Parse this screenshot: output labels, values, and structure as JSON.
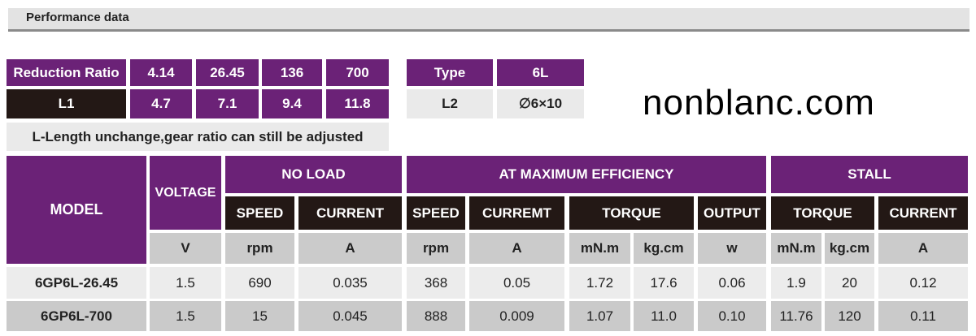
{
  "section_title": "Performance data",
  "ratio_table": {
    "ratio_label": "Reduction Ratio",
    "ratios": [
      "4.14",
      "26.45",
      "136",
      "700"
    ],
    "l1_label": "L1",
    "l1_values": [
      "4.7",
      "7.1",
      "9.4",
      "11.8"
    ],
    "note": "L-Length unchange,gear ratio can still be adjusted"
  },
  "type_table": {
    "type_label": "Type",
    "type_value": "6L",
    "l2_label": "L2",
    "l2_value": "∅6×10"
  },
  "perf": {
    "model": "MODEL",
    "voltage": "VOLTAGE",
    "no_load": "NO LOAD",
    "ame": "AT MAXIMUM EFFICIENCY",
    "stall": "STALL",
    "sub": [
      "SPEED",
      "CURRENT",
      "SPEED",
      "CURREMT",
      "TORQUE",
      "OUTPUT",
      "TORQUE",
      "CURRENT"
    ],
    "units": [
      "V",
      "rpm",
      "A",
      "rpm",
      "A",
      "mN.m",
      "kg.cm",
      "w",
      "mN.m",
      "kg.cm",
      "A"
    ],
    "rows": [
      [
        "6GP6L-26.45",
        "1.5",
        "690",
        "0.035",
        "368",
        "0.05",
        "1.72",
        "17.6",
        "0.06",
        "1.9",
        "20",
        "0.12"
      ],
      [
        "6GP6L-700",
        "1.5",
        "15",
        "0.045",
        "888",
        "0.009",
        "1.07",
        "11.0",
        "0.10",
        "11.76",
        "120",
        "0.11"
      ]
    ]
  },
  "watermark": "nonblanc.com",
  "colors": {
    "purple": "#6b2277",
    "dark": "#231815"
  }
}
